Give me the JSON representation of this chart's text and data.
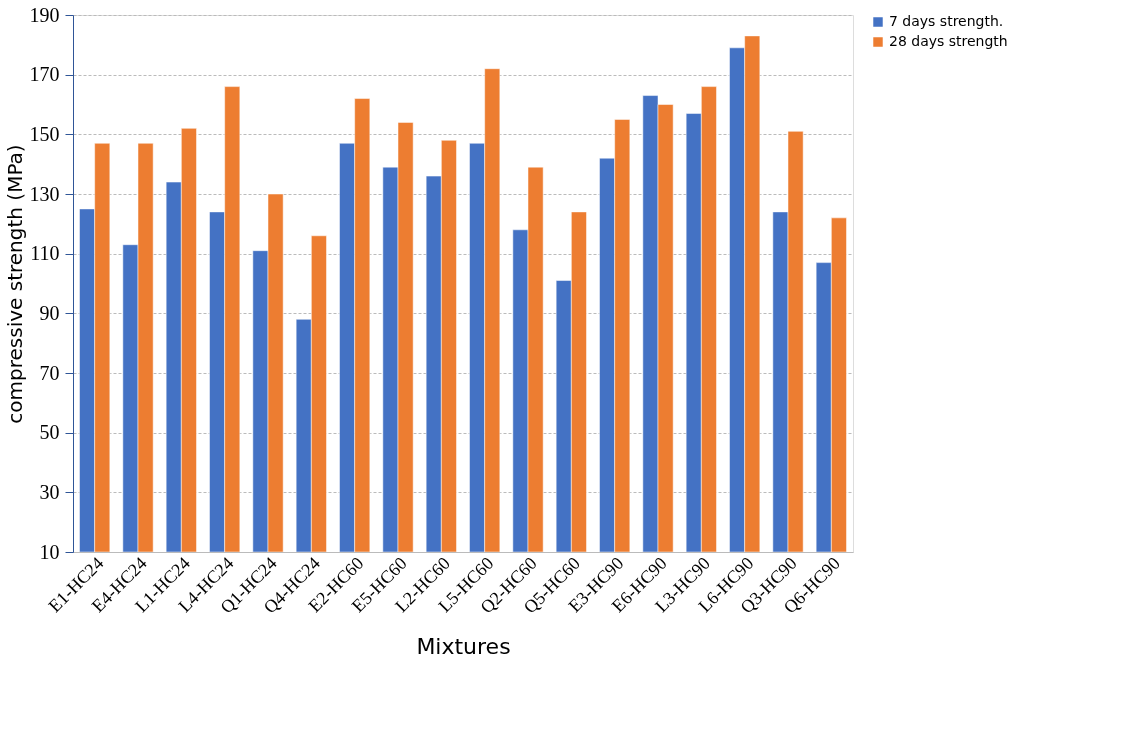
{
  "chart_data": {
    "type": "bar",
    "xlabel": "Mixtures",
    "ylabel": "compressive strength (MPa)",
    "categories": [
      "E1-HC24",
      "E4-HC24",
      "L1-HC24",
      "L4-HC24",
      "Q1-HC24",
      "Q4-HC24",
      "E2-HC60",
      "E5-HC60",
      "L2-HC60",
      "L5-HC60",
      "Q2-HC60",
      "Q5-HC60",
      "E3-HC90",
      "E6-HC90",
      "L3-HC90",
      "L6-HC90",
      "Q3-HC90",
      "Q6-HC90"
    ],
    "series": [
      {
        "name": "7 days strength.",
        "color": "#4472c4",
        "values": [
          125,
          113,
          134,
          124,
          111,
          88,
          147,
          139,
          136,
          147,
          118,
          101,
          142,
          163,
          157,
          179,
          124,
          107
        ]
      },
      {
        "name": "28 days strength",
        "color": "#ed7d31",
        "values": [
          147,
          147,
          152,
          166,
          130,
          116,
          162,
          154,
          148,
          172,
          139,
          124,
          155,
          160,
          166,
          183,
          151,
          122
        ]
      }
    ],
    "ylim": [
      10,
      190
    ],
    "yticks": [
      10,
      30,
      50,
      70,
      90,
      110,
      130,
      150,
      170,
      190
    ],
    "grid": "y",
    "legend": "top right"
  }
}
